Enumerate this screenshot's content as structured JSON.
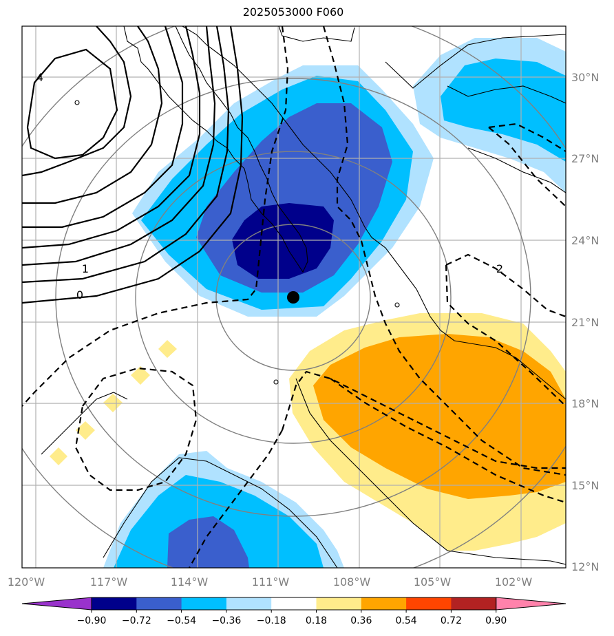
{
  "title": "2025053000 F060",
  "lon_ticks": [
    "120°W",
    "117°W",
    "114°W",
    "111°W",
    "108°W",
    "105°W",
    "102°W"
  ],
  "lat_ticks": [
    "30°N",
    "27°N",
    "24°N",
    "21°N",
    "18°N",
    "15°N",
    "12°N"
  ],
  "colorbar": {
    "ticks": [
      "−0.90",
      "−0.72",
      "−0.54",
      "−0.36",
      "−0.18",
      "0.18",
      "0.36",
      "0.54",
      "0.72",
      "0.90"
    ],
    "colors": [
      "#9932cc",
      "#00008b",
      "#3a5fcd",
      "#00bfff",
      "#b0e2ff",
      "#ffffff",
      "#ffec8b",
      "#ffa500",
      "#ff4500",
      "#b22222",
      "#ff82ab"
    ]
  },
  "contour_labels": [
    "4",
    "1",
    "0",
    "2"
  ],
  "palette": {
    "light_blue": "#b0e2ff",
    "blue": "#00bfff",
    "royal_blue": "#3a5fcd",
    "navy": "#00008b",
    "light_yellow": "#ffec8b",
    "orange": "#ffa500",
    "grid": "#b0b0b0",
    "range_ring": "#808080"
  },
  "storm_marker": "filled-circle"
}
